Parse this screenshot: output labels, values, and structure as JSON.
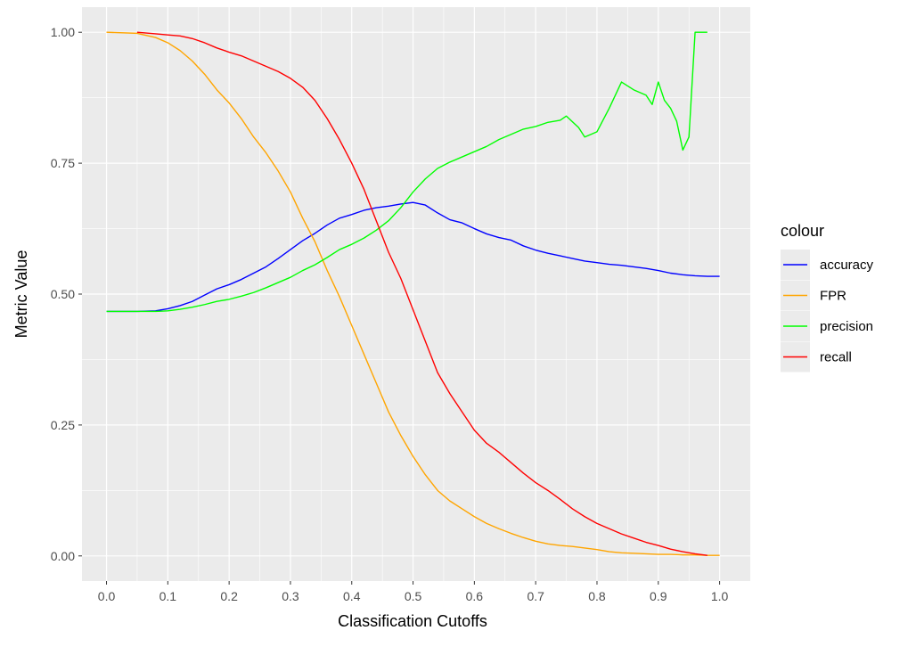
{
  "chart_data": {
    "type": "line",
    "xlabel": "Classification Cutoffs",
    "ylabel": "Metric Value",
    "xlim": [
      -0.04,
      1.05
    ],
    "ylim": [
      -0.048,
      1.048
    ],
    "x_ticks": [
      0.0,
      0.1,
      0.2,
      0.3,
      0.4,
      0.5,
      0.6,
      0.7,
      0.8,
      0.9,
      1.0
    ],
    "x_tick_labels": [
      "0.0",
      "0.1",
      "0.2",
      "0.3",
      "0.4",
      "0.5",
      "0.6",
      "0.7",
      "0.8",
      "0.9",
      "1.0"
    ],
    "y_ticks": [
      0.0,
      0.25,
      0.5,
      0.75,
      1.0
    ],
    "y_tick_labels": [
      "0.00",
      "0.25",
      "0.50",
      "0.75",
      "1.00"
    ],
    "grid": true,
    "panel_background": "#ebebeb",
    "legend": {
      "title": "colour",
      "position": "right"
    },
    "series": [
      {
        "name": "accuracy",
        "color": "#0000ff",
        "x": [
          0,
          0.05,
          0.08,
          0.1,
          0.12,
          0.14,
          0.16,
          0.18,
          0.2,
          0.22,
          0.24,
          0.26,
          0.28,
          0.3,
          0.32,
          0.34,
          0.36,
          0.38,
          0.4,
          0.42,
          0.44,
          0.46,
          0.48,
          0.5,
          0.52,
          0.54,
          0.56,
          0.58,
          0.6,
          0.62,
          0.64,
          0.66,
          0.68,
          0.7,
          0.72,
          0.74,
          0.76,
          0.78,
          0.8,
          0.82,
          0.84,
          0.86,
          0.88,
          0.9,
          0.92,
          0.94,
          0.96,
          0.98,
          1.0
        ],
        "y": [
          0.467,
          0.467,
          0.468,
          0.472,
          0.478,
          0.486,
          0.498,
          0.51,
          0.518,
          0.528,
          0.54,
          0.552,
          0.568,
          0.585,
          0.602,
          0.616,
          0.632,
          0.645,
          0.652,
          0.66,
          0.665,
          0.668,
          0.672,
          0.675,
          0.67,
          0.655,
          0.642,
          0.636,
          0.625,
          0.615,
          0.608,
          0.603,
          0.592,
          0.584,
          0.578,
          0.573,
          0.568,
          0.563,
          0.56,
          0.557,
          0.555,
          0.552,
          0.549,
          0.545,
          0.54,
          0.537,
          0.535,
          0.534,
          0.534
        ]
      },
      {
        "name": "FPR",
        "color": "#ffa500",
        "x": [
          0,
          0.05,
          0.08,
          0.1,
          0.12,
          0.14,
          0.16,
          0.18,
          0.2,
          0.22,
          0.24,
          0.26,
          0.28,
          0.3,
          0.32,
          0.34,
          0.36,
          0.38,
          0.4,
          0.42,
          0.44,
          0.46,
          0.48,
          0.5,
          0.52,
          0.54,
          0.56,
          0.58,
          0.6,
          0.62,
          0.64,
          0.66,
          0.68,
          0.7,
          0.72,
          0.74,
          0.76,
          0.78,
          0.8,
          0.82,
          0.84,
          0.86,
          0.88,
          0.9,
          0.92,
          0.94,
          0.96,
          0.98,
          1.0
        ],
        "y": [
          1.0,
          0.998,
          0.99,
          0.98,
          0.965,
          0.945,
          0.92,
          0.89,
          0.865,
          0.835,
          0.8,
          0.77,
          0.735,
          0.695,
          0.645,
          0.6,
          0.545,
          0.495,
          0.44,
          0.385,
          0.33,
          0.275,
          0.23,
          0.19,
          0.155,
          0.125,
          0.105,
          0.09,
          0.075,
          0.062,
          0.052,
          0.043,
          0.035,
          0.028,
          0.023,
          0.02,
          0.018,
          0.015,
          0.012,
          0.008,
          0.006,
          0.005,
          0.004,
          0.003,
          0.003,
          0.002,
          0.002,
          0.001,
          0.001
        ]
      },
      {
        "name": "precision",
        "color": "#00ff00",
        "x": [
          0,
          0.05,
          0.08,
          0.1,
          0.12,
          0.14,
          0.16,
          0.18,
          0.2,
          0.22,
          0.24,
          0.26,
          0.28,
          0.3,
          0.32,
          0.34,
          0.36,
          0.38,
          0.4,
          0.42,
          0.44,
          0.46,
          0.48,
          0.5,
          0.52,
          0.54,
          0.56,
          0.58,
          0.6,
          0.62,
          0.64,
          0.66,
          0.68,
          0.7,
          0.72,
          0.74,
          0.75,
          0.77,
          0.78,
          0.8,
          0.82,
          0.84,
          0.86,
          0.88,
          0.89,
          0.9,
          0.91,
          0.92,
          0.93,
          0.94,
          0.95,
          0.96,
          0.98
        ],
        "y": [
          0.467,
          0.467,
          0.467,
          0.468,
          0.471,
          0.475,
          0.48,
          0.486,
          0.49,
          0.496,
          0.503,
          0.512,
          0.522,
          0.532,
          0.545,
          0.556,
          0.57,
          0.585,
          0.595,
          0.607,
          0.622,
          0.64,
          0.665,
          0.695,
          0.72,
          0.74,
          0.752,
          0.762,
          0.772,
          0.782,
          0.795,
          0.805,
          0.815,
          0.82,
          0.828,
          0.832,
          0.84,
          0.818,
          0.8,
          0.81,
          0.855,
          0.905,
          0.89,
          0.88,
          0.862,
          0.905,
          0.87,
          0.855,
          0.83,
          0.775,
          0.8,
          1.0,
          1.0
        ]
      },
      {
        "name": "recall",
        "color": "#ff0000",
        "x": [
          0.05,
          0.08,
          0.1,
          0.12,
          0.14,
          0.16,
          0.18,
          0.2,
          0.22,
          0.24,
          0.26,
          0.28,
          0.3,
          0.32,
          0.34,
          0.36,
          0.38,
          0.4,
          0.42,
          0.44,
          0.46,
          0.48,
          0.5,
          0.52,
          0.54,
          0.56,
          0.58,
          0.6,
          0.62,
          0.64,
          0.66,
          0.68,
          0.7,
          0.72,
          0.74,
          0.76,
          0.78,
          0.8,
          0.82,
          0.84,
          0.86,
          0.88,
          0.9,
          0.92,
          0.94,
          0.96,
          0.98
        ],
        "y": [
          1.0,
          0.997,
          0.995,
          0.993,
          0.988,
          0.98,
          0.97,
          0.962,
          0.955,
          0.945,
          0.935,
          0.925,
          0.912,
          0.895,
          0.87,
          0.835,
          0.795,
          0.75,
          0.7,
          0.64,
          0.58,
          0.53,
          0.47,
          0.41,
          0.35,
          0.31,
          0.275,
          0.24,
          0.215,
          0.198,
          0.178,
          0.158,
          0.14,
          0.125,
          0.108,
          0.09,
          0.075,
          0.062,
          0.052,
          0.042,
          0.034,
          0.026,
          0.02,
          0.013,
          0.008,
          0.004,
          0.001
        ]
      }
    ]
  }
}
